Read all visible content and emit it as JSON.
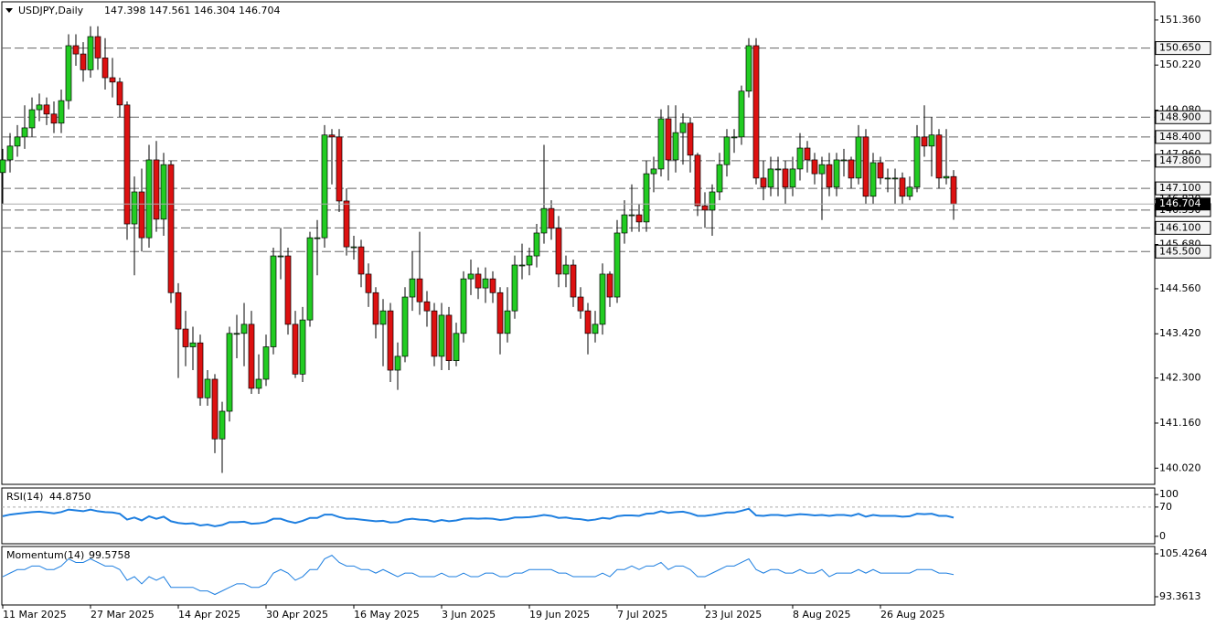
{
  "chart_data": {
    "type": "candlestick",
    "symbol": "USDJPY,Daily",
    "up_color": "#22cc22",
    "down_color": "#dd1111",
    "ylim": [
      139.61,
      151.82
    ],
    "yticks": [
      {
        "value": 151.36,
        "label": "151.360"
      },
      {
        "value": 150.22,
        "label": "150.220"
      },
      {
        "value": 149.08,
        "label": "149.080"
      },
      {
        "value": 147.96,
        "label": "147.960"
      },
      {
        "value": 146.82,
        "label": "146.820"
      },
      {
        "value": 145.68,
        "label": "145.680"
      },
      {
        "value": 144.56,
        "label": "144.560"
      },
      {
        "value": 143.42,
        "label": "143.420"
      },
      {
        "value": 142.3,
        "label": "142.300"
      },
      {
        "value": 141.16,
        "label": "141.160"
      },
      {
        "value": 140.02,
        "label": "140.020"
      }
    ],
    "levels": [
      {
        "value": 150.65,
        "label": "150.650"
      },
      {
        "value": 148.9,
        "label": "148.900"
      },
      {
        "value": 148.4,
        "label": "148.400"
      },
      {
        "value": 147.8,
        "label": "147.800"
      },
      {
        "value": 147.1,
        "label": "147.100"
      },
      {
        "value": 146.55,
        "label": "146.550"
      },
      {
        "value": 146.1,
        "label": "146.100"
      },
      {
        "value": 145.5,
        "label": "145.500"
      }
    ],
    "xticks": [
      {
        "value": 0,
        "label": "11 Mar 2025"
      },
      {
        "value": 12,
        "label": "27 Mar 2025"
      },
      {
        "value": 24,
        "label": "14 Apr 2025"
      },
      {
        "value": 36,
        "label": "30 Apr 2025"
      },
      {
        "value": 48,
        "label": "16 May 2025"
      },
      {
        "value": 60,
        "label": "3 Jun 2025"
      },
      {
        "value": 72,
        "label": "19 Jun 2025"
      },
      {
        "value": 84,
        "label": "7 Jul 2025"
      },
      {
        "value": 96,
        "label": "23 Jul 2025"
      },
      {
        "value": 108,
        "label": "8 Aug 2025"
      },
      {
        "value": 120,
        "label": "26 Aug 2025"
      }
    ],
    "ohlc": [
      [
        147.5,
        148.1,
        146.7,
        147.82
      ],
      [
        147.82,
        148.5,
        147.5,
        148.17
      ],
      [
        148.17,
        148.7,
        147.9,
        148.4
      ],
      [
        148.4,
        149.2,
        148.1,
        148.63
      ],
      [
        148.63,
        149.4,
        148.4,
        149.09
      ],
      [
        149.09,
        149.5,
        148.8,
        149.21
      ],
      [
        149.21,
        149.4,
        148.7,
        148.98
      ],
      [
        148.98,
        149.3,
        148.5,
        148.75
      ],
      [
        148.75,
        149.6,
        148.5,
        149.32
      ],
      [
        149.32,
        151.0,
        149.1,
        150.71
      ],
      [
        150.71,
        151.0,
        150.2,
        150.5
      ],
      [
        150.5,
        150.8,
        149.8,
        150.1
      ],
      [
        150.1,
        151.2,
        149.9,
        150.94
      ],
      [
        150.94,
        151.2,
        150.1,
        150.4
      ],
      [
        150.4,
        150.9,
        149.6,
        149.9
      ],
      [
        149.9,
        150.4,
        149.4,
        149.79
      ],
      [
        149.79,
        149.9,
        148.9,
        149.21
      ],
      [
        149.21,
        149.3,
        145.8,
        146.2
      ],
      [
        146.2,
        147.4,
        144.9,
        147.01
      ],
      [
        147.01,
        147.6,
        145.5,
        145.85
      ],
      [
        145.85,
        148.2,
        145.6,
        147.82
      ],
      [
        147.82,
        148.3,
        146.0,
        146.32
      ],
      [
        146.32,
        148.0,
        145.9,
        147.7
      ],
      [
        147.7,
        147.8,
        144.2,
        144.46
      ],
      [
        144.46,
        144.7,
        142.3,
        143.54
      ],
      [
        143.54,
        144.0,
        142.6,
        143.09
      ],
      [
        143.09,
        143.6,
        142.5,
        143.19
      ],
      [
        143.19,
        143.4,
        141.6,
        141.8
      ],
      [
        141.8,
        142.5,
        141.6,
        142.27
      ],
      [
        142.27,
        142.4,
        140.4,
        140.76
      ],
      [
        140.76,
        141.7,
        139.9,
        141.46
      ],
      [
        141.46,
        143.6,
        141.2,
        143.43
      ],
      [
        143.43,
        143.9,
        142.8,
        143.43
      ],
      [
        143.43,
        144.2,
        142.6,
        143.66
      ],
      [
        143.66,
        144.0,
        141.9,
        142.04
      ],
      [
        142.04,
        142.9,
        141.9,
        142.27
      ],
      [
        142.27,
        143.4,
        142.1,
        143.09
      ],
      [
        143.09,
        145.6,
        142.9,
        145.39
      ],
      [
        145.39,
        146.1,
        144.8,
        145.39
      ],
      [
        145.39,
        145.6,
        143.4,
        143.66
      ],
      [
        143.66,
        144.0,
        142.3,
        142.4
      ],
      [
        142.4,
        144.1,
        142.2,
        143.77
      ],
      [
        143.77,
        146.0,
        143.6,
        145.85
      ],
      [
        145.85,
        146.3,
        144.9,
        145.85
      ],
      [
        145.85,
        148.7,
        145.6,
        148.45
      ],
      [
        148.45,
        148.6,
        147.2,
        148.4
      ],
      [
        148.4,
        148.6,
        146.5,
        146.78
      ],
      [
        146.78,
        147.1,
        145.4,
        145.62
      ],
      [
        145.62,
        145.9,
        145.3,
        145.62
      ],
      [
        145.62,
        145.8,
        144.6,
        144.93
      ],
      [
        144.93,
        145.2,
        144.1,
        144.46
      ],
      [
        144.46,
        144.6,
        143.3,
        143.66
      ],
      [
        143.66,
        144.3,
        142.6,
        144.0
      ],
      [
        144.0,
        144.2,
        142.2,
        142.5
      ],
      [
        142.5,
        143.2,
        142.0,
        142.85
      ],
      [
        142.85,
        144.6,
        142.7,
        144.35
      ],
      [
        144.35,
        145.5,
        144.0,
        144.81
      ],
      [
        144.81,
        146.0,
        143.9,
        144.23
      ],
      [
        144.23,
        144.5,
        143.6,
        144.0
      ],
      [
        144.0,
        144.2,
        142.6,
        142.85
      ],
      [
        142.85,
        144.2,
        142.5,
        143.89
      ],
      [
        143.89,
        144.1,
        142.5,
        142.74
      ],
      [
        142.74,
        143.7,
        142.6,
        143.43
      ],
      [
        143.43,
        145.0,
        143.2,
        144.81
      ],
      [
        144.81,
        145.3,
        144.4,
        144.93
      ],
      [
        144.93,
        145.1,
        144.3,
        144.58
      ],
      [
        144.58,
        145.1,
        144.2,
        144.81
      ],
      [
        144.81,
        145.0,
        144.2,
        144.46
      ],
      [
        144.46,
        144.6,
        142.9,
        143.43
      ],
      [
        143.43,
        144.6,
        143.2,
        144.0
      ],
      [
        144.0,
        145.4,
        143.8,
        145.16
      ],
      [
        145.16,
        145.7,
        144.8,
        145.16
      ],
      [
        145.16,
        145.6,
        144.9,
        145.39
      ],
      [
        145.39,
        146.2,
        145.1,
        145.97
      ],
      [
        145.97,
        148.2,
        145.7,
        146.59
      ],
      [
        146.59,
        146.8,
        145.8,
        146.09
      ],
      [
        146.09,
        146.4,
        144.6,
        144.93
      ],
      [
        144.93,
        145.4,
        144.6,
        145.16
      ],
      [
        145.16,
        145.3,
        144.1,
        144.35
      ],
      [
        144.35,
        144.6,
        143.8,
        144.0
      ],
      [
        144.0,
        144.2,
        142.9,
        143.43
      ],
      [
        143.43,
        144.0,
        143.2,
        143.66
      ],
      [
        143.66,
        145.2,
        143.4,
        144.93
      ],
      [
        144.93,
        145.0,
        144.1,
        144.35
      ],
      [
        144.35,
        146.3,
        144.2,
        145.97
      ],
      [
        145.97,
        146.8,
        145.7,
        146.43
      ],
      [
        146.43,
        147.2,
        146.0,
        146.43
      ],
      [
        146.43,
        146.7,
        146.0,
        146.25
      ],
      [
        146.25,
        147.8,
        146.0,
        147.47
      ],
      [
        147.47,
        147.9,
        147.0,
        147.59
      ],
      [
        147.59,
        149.1,
        147.4,
        148.86
      ],
      [
        148.86,
        149.2,
        147.3,
        147.82
      ],
      [
        147.82,
        149.2,
        147.5,
        148.51
      ],
      [
        148.51,
        149.0,
        147.7,
        148.75
      ],
      [
        148.75,
        148.9,
        147.5,
        147.94
      ],
      [
        147.94,
        148.0,
        146.4,
        146.66
      ],
      [
        146.66,
        147.0,
        146.1,
        146.55
      ],
      [
        146.55,
        147.2,
        145.9,
        147.01
      ],
      [
        147.01,
        148.0,
        146.8,
        147.7
      ],
      [
        147.7,
        148.6,
        147.4,
        148.4
      ],
      [
        148.4,
        148.6,
        148.0,
        148.4
      ],
      [
        148.4,
        149.7,
        148.2,
        149.56
      ],
      [
        149.56,
        150.9,
        149.4,
        150.71
      ],
      [
        150.71,
        150.9,
        147.2,
        147.36
      ],
      [
        147.36,
        147.8,
        146.8,
        147.13
      ],
      [
        147.13,
        147.9,
        146.9,
        147.59
      ],
      [
        147.59,
        147.9,
        146.9,
        147.59
      ],
      [
        147.59,
        147.8,
        146.7,
        147.13
      ],
      [
        147.13,
        147.9,
        146.9,
        147.59
      ],
      [
        147.59,
        148.5,
        147.3,
        148.12
      ],
      [
        148.12,
        148.3,
        147.5,
        147.82
      ],
      [
        147.82,
        148.0,
        147.2,
        147.47
      ],
      [
        147.47,
        147.9,
        146.3,
        147.7
      ],
      [
        147.7,
        148.0,
        146.9,
        147.13
      ],
      [
        147.13,
        148.0,
        146.9,
        147.82
      ],
      [
        147.82,
        148.1,
        147.4,
        147.82
      ],
      [
        147.82,
        147.9,
        147.1,
        147.36
      ],
      [
        147.36,
        148.7,
        147.2,
        148.4
      ],
      [
        148.4,
        148.6,
        146.7,
        146.9
      ],
      [
        146.9,
        148.0,
        146.7,
        147.75
      ],
      [
        147.75,
        147.9,
        147.2,
        147.36
      ],
      [
        147.36,
        147.6,
        147.0,
        147.36
      ],
      [
        147.36,
        147.6,
        146.7,
        147.36
      ],
      [
        147.36,
        147.5,
        146.7,
        146.9
      ],
      [
        146.9,
        147.4,
        146.8,
        147.13
      ],
      [
        147.13,
        148.7,
        147.0,
        148.4
      ],
      [
        148.4,
        149.2,
        147.9,
        148.17
      ],
      [
        148.17,
        148.9,
        147.4,
        148.45
      ],
      [
        148.45,
        148.6,
        147.1,
        147.36
      ],
      [
        147.36,
        148.6,
        147.2,
        147.4
      ],
      [
        147.398,
        147.561,
        146.304,
        146.704
      ]
    ],
    "rsi": {
      "title": "RSI(14)",
      "last_label": "44.8750",
      "color": "#1e7fe0",
      "ylim": [
        -17.8,
        115.6
      ],
      "yticks": [
        100,
        70,
        0
      ],
      "level": 70,
      "values": [
        48,
        52,
        54,
        56,
        58,
        59,
        57,
        55,
        58,
        64,
        62,
        60,
        64,
        60,
        58,
        57,
        54,
        40,
        45,
        38,
        48,
        42,
        47,
        36,
        32,
        30,
        31,
        26,
        28,
        24,
        27,
        34,
        34,
        35,
        30,
        31,
        34,
        42,
        42,
        36,
        32,
        37,
        44,
        44,
        52,
        52,
        46,
        42,
        42,
        40,
        38,
        36,
        37,
        33,
        34,
        40,
        42,
        40,
        39,
        35,
        39,
        36,
        38,
        42,
        43,
        42,
        43,
        42,
        39,
        41,
        45,
        45,
        46,
        48,
        51,
        49,
        44,
        45,
        42,
        41,
        38,
        40,
        44,
        42,
        48,
        50,
        50,
        49,
        54,
        55,
        60,
        56,
        58,
        59,
        55,
        49,
        49,
        51,
        54,
        57,
        57,
        61,
        66,
        50,
        49,
        51,
        51,
        49,
        51,
        53,
        52,
        50,
        51,
        49,
        51,
        51,
        49,
        54,
        47,
        51,
        49,
        49,
        49,
        47,
        48,
        54,
        53,
        54,
        49,
        49,
        44.875
      ]
    },
    "momentum": {
      "title": "Momentum(14)",
      "color": "#1e7fe0",
      "ylim": [
        91.05,
        107.48
      ],
      "yticks": [
        105.4264,
        93.3613
      ],
      "values": [
        99,
        100,
        101,
        101,
        102,
        102,
        101,
        101,
        102,
        104,
        103,
        103,
        104,
        103,
        102,
        102,
        101,
        98,
        99,
        97,
        99,
        98,
        99,
        96,
        96,
        96,
        96,
        95,
        95,
        94,
        95,
        96,
        97,
        97,
        96,
        96,
        97,
        100,
        101,
        100,
        98,
        99,
        101,
        101,
        104,
        105,
        103,
        102,
        102,
        101,
        101,
        100,
        101,
        100,
        99,
        100,
        100,
        99,
        99,
        99,
        100,
        99,
        99,
        100,
        99,
        99,
        100,
        100,
        99,
        99,
        100,
        100,
        101,
        101,
        101,
        101,
        100,
        100,
        99,
        99,
        99,
        99,
        100,
        99,
        101,
        101,
        102,
        101,
        102,
        102,
        103,
        101,
        102,
        102,
        101,
        99,
        99,
        100,
        101,
        102,
        102,
        103,
        104,
        101,
        100,
        101,
        101,
        100,
        100,
        101,
        100,
        100,
        101,
        99,
        100,
        100,
        100,
        101,
        100,
        101,
        100,
        100,
        100,
        100,
        100,
        101,
        101,
        101,
        100,
        100,
        99.5758
      ]
    }
  }
}
